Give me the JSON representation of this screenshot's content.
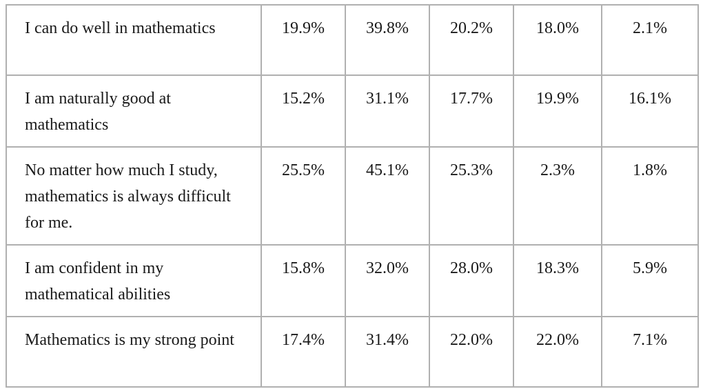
{
  "table": {
    "rows": [
      {
        "statement": "I can do well in mathematics",
        "values": [
          "19.9%",
          "39.8%",
          "20.2%",
          "18.0%",
          "2.1%"
        ]
      },
      {
        "statement": "I am naturally good at mathematics",
        "values": [
          "15.2%",
          "31.1%",
          "17.7%",
          "19.9%",
          "16.1%"
        ]
      },
      {
        "statement": "No matter how much I study, mathematics is always difficult for me.",
        "values": [
          "25.5%",
          "45.1%",
          "25.3%",
          "2.3%",
          "1.8%"
        ]
      },
      {
        "statement": "I am confident in my mathematical abilities",
        "values": [
          "15.8%",
          "32.0%",
          "28.0%",
          "18.3%",
          "5.9%"
        ]
      },
      {
        "statement": "Mathematics is my strong point",
        "values": [
          "17.4%",
          "31.4%",
          "22.0%",
          "22.0%",
          "7.1%"
        ]
      }
    ]
  }
}
